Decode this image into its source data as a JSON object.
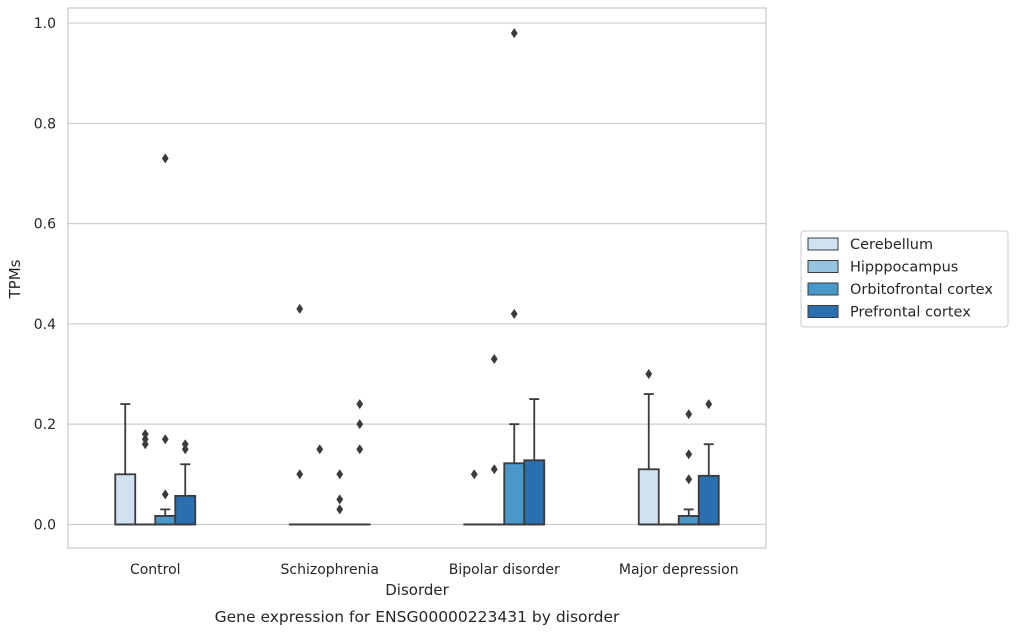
{
  "chart_data": {
    "type": "box",
    "caption": "Gene expression for ENSG00000223431 by disorder",
    "xlabel": "Disorder",
    "ylabel": "TPMs",
    "ylim": [
      -0.047,
      1.03
    ],
    "yticks": [
      0.0,
      0.2,
      0.4,
      0.6,
      0.8,
      1.0
    ],
    "ytick_labels": [
      "0.0",
      "0.2",
      "0.4",
      "0.6",
      "0.8",
      "1.0"
    ],
    "grid": true,
    "legend_placement": "right",
    "categories": [
      "Control",
      "Schizophrenia",
      "Bipolar disorder",
      "Major depression"
    ],
    "series": [
      {
        "name": "Cerebellum",
        "color": "#d0e1f2",
        "boxes": [
          {
            "q1": 0.0,
            "median": 0.0,
            "q3": 0.1,
            "whisker_low": 0.0,
            "whisker_high": 0.24,
            "outliers": []
          },
          {
            "q1": 0.0,
            "median": 0.0,
            "q3": 0.0,
            "whisker_low": 0.0,
            "whisker_high": 0.0,
            "outliers": [
              0.1,
              0.43
            ]
          },
          {
            "q1": 0.0,
            "median": 0.0,
            "q3": 0.0,
            "whisker_low": 0.0,
            "whisker_high": 0.0,
            "outliers": [
              0.1
            ]
          },
          {
            "q1": 0.0,
            "median": 0.0,
            "q3": 0.11,
            "whisker_low": 0.0,
            "whisker_high": 0.26,
            "outliers": [
              0.3
            ]
          }
        ]
      },
      {
        "name": "Hipppocampus",
        "color": "#94c4df",
        "boxes": [
          {
            "q1": 0.0,
            "median": 0.0,
            "q3": 0.0,
            "whisker_low": 0.0,
            "whisker_high": 0.0,
            "outliers": [
              0.16,
              0.17,
              0.18
            ]
          },
          {
            "q1": 0.0,
            "median": 0.0,
            "q3": 0.0,
            "whisker_low": 0.0,
            "whisker_high": 0.0,
            "outliers": [
              0.15
            ]
          },
          {
            "q1": 0.0,
            "median": 0.0,
            "q3": 0.0,
            "whisker_low": 0.0,
            "whisker_high": 0.0,
            "outliers": [
              0.11,
              0.33
            ]
          },
          {
            "q1": 0.0,
            "median": 0.0,
            "q3": 0.0,
            "whisker_low": 0.0,
            "whisker_high": 0.0,
            "outliers": []
          }
        ]
      },
      {
        "name": "Orbitofrontal cortex",
        "color": "#4a98c9",
        "boxes": [
          {
            "q1": 0.0,
            "median": 0.0,
            "q3": 0.017,
            "whisker_low": 0.0,
            "whisker_high": 0.03,
            "outliers": [
              0.06,
              0.17,
              0.73
            ]
          },
          {
            "q1": 0.0,
            "median": 0.0,
            "q3": 0.0,
            "whisker_low": 0.0,
            "whisker_high": 0.0,
            "outliers": [
              0.03,
              0.05,
              0.1
            ]
          },
          {
            "q1": 0.0,
            "median": 0.0,
            "q3": 0.122,
            "whisker_low": 0.0,
            "whisker_high": 0.2,
            "outliers": [
              0.42,
              0.98
            ]
          },
          {
            "q1": 0.0,
            "median": 0.0,
            "q3": 0.017,
            "whisker_low": 0.0,
            "whisker_high": 0.03,
            "outliers": [
              0.09,
              0.14,
              0.22
            ]
          }
        ]
      },
      {
        "name": "Prefrontal cortex",
        "color": "#2a6fb0",
        "boxes": [
          {
            "q1": 0.0,
            "median": 0.0,
            "q3": 0.057,
            "whisker_low": 0.0,
            "whisker_high": 0.12,
            "outliers": [
              0.15,
              0.16
            ]
          },
          {
            "q1": 0.0,
            "median": 0.0,
            "q3": 0.0,
            "whisker_low": 0.0,
            "whisker_high": 0.0,
            "outliers": [
              0.15,
              0.2,
              0.24
            ]
          },
          {
            "q1": 0.0,
            "median": 0.0,
            "q3": 0.128,
            "whisker_low": 0.0,
            "whisker_high": 0.25,
            "outliers": []
          },
          {
            "q1": 0.0,
            "median": 0.0,
            "q3": 0.097,
            "whisker_low": 0.0,
            "whisker_high": 0.16,
            "outliers": [
              0.24
            ]
          }
        ]
      }
    ]
  }
}
